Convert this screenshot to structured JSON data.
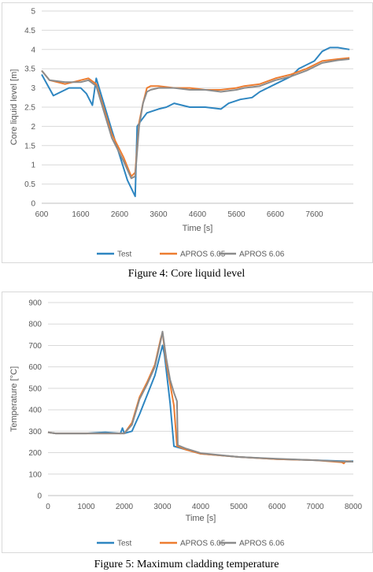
{
  "colors": {
    "test": "#2e86c1",
    "apros605": "#ed7d31",
    "apros606": "#8c8c8c",
    "grid": "#d9d9d9",
    "axis_text": "#595959"
  },
  "captions": {
    "fig4": "Figure 4: Core liquid level",
    "fig5": "Figure 5: Maximum cladding temperature"
  },
  "chart_data": [
    {
      "type": "line",
      "xlabel": "Time [s]",
      "ylabel": "Core liquid level [m]",
      "xlim": [
        600,
        8600
      ],
      "ylim": [
        0,
        5
      ],
      "xticks": [
        600,
        1600,
        2600,
        3600,
        4600,
        5600,
        6600,
        7600
      ],
      "yticks": [
        0,
        0.5,
        1,
        1.5,
        2,
        2.5,
        3,
        3.5,
        4,
        4.5,
        5
      ],
      "ytick_labels": [
        "0",
        "0.5",
        "1",
        "1.5",
        "2",
        "2.5",
        "3",
        "3.5",
        "4",
        "4.5",
        "5"
      ],
      "grid": "horizontal",
      "legend": "bottom",
      "series": [
        {
          "name": "Test",
          "color_key": "test",
          "x": [
            600,
            900,
            1300,
            1600,
            1750,
            1900,
            2000,
            2400,
            2800,
            3000,
            3050,
            3150,
            3300,
            3600,
            3800,
            4000,
            4400,
            4800,
            5200,
            5400,
            5700,
            6000,
            6200,
            6600,
            7000,
            7200,
            7600,
            7800,
            8000,
            8200,
            8500
          ],
          "y": [
            3.35,
            2.8,
            3.0,
            3.0,
            2.85,
            2.55,
            3.25,
            1.9,
            0.6,
            0.18,
            2.0,
            2.15,
            2.35,
            2.45,
            2.5,
            2.6,
            2.5,
            2.5,
            2.45,
            2.6,
            2.7,
            2.75,
            2.9,
            3.1,
            3.3,
            3.5,
            3.7,
            3.95,
            4.05,
            4.05,
            4.0
          ]
        },
        {
          "name": "APROS 6.05",
          "color_key": "apros605",
          "x": [
            600,
            800,
            1200,
            1600,
            1800,
            2000,
            2400,
            2700,
            2900,
            3000,
            3100,
            3200,
            3300,
            3400,
            3600,
            4000,
            4400,
            4800,
            5200,
            5600,
            5800,
            6200,
            6600,
            7000,
            7400,
            7800,
            8200,
            8500
          ],
          "y": [
            3.45,
            3.2,
            3.1,
            3.2,
            3.25,
            3.1,
            1.8,
            1.2,
            0.7,
            0.8,
            2.1,
            2.6,
            3.0,
            3.05,
            3.05,
            3.0,
            3.0,
            2.95,
            2.95,
            3.0,
            3.05,
            3.1,
            3.25,
            3.35,
            3.5,
            3.7,
            3.75,
            3.78
          ]
        },
        {
          "name": "APROS 6.06",
          "color_key": "apros606",
          "x": [
            600,
            800,
            1200,
            1600,
            1800,
            2000,
            2400,
            2700,
            2900,
            3000,
            3100,
            3200,
            3300,
            3400,
            3600,
            4000,
            4400,
            4800,
            5200,
            5600,
            5800,
            6200,
            6600,
            7000,
            7400,
            7800,
            8200,
            8500
          ],
          "y": [
            3.45,
            3.2,
            3.15,
            3.15,
            3.2,
            3.05,
            1.7,
            1.1,
            0.65,
            0.7,
            2.0,
            2.6,
            2.9,
            2.95,
            3.0,
            3.0,
            2.95,
            2.95,
            2.9,
            2.95,
            3.0,
            3.05,
            3.2,
            3.3,
            3.45,
            3.65,
            3.72,
            3.75
          ]
        }
      ]
    },
    {
      "type": "line",
      "xlabel": "Time [s]",
      "ylabel": "Temperature [°C]",
      "xlim": [
        0,
        8000
      ],
      "ylim": [
        0,
        900
      ],
      "xticks": [
        0,
        1000,
        2000,
        3000,
        4000,
        5000,
        6000,
        7000,
        8000
      ],
      "yticks": [
        0,
        100,
        200,
        300,
        400,
        500,
        600,
        700,
        800,
        900
      ],
      "ytick_labels": [
        "0",
        "100",
        "200",
        "300",
        "400",
        "500",
        "600",
        "700",
        "800",
        "900"
      ],
      "grid": "horizontal",
      "legend": "bottom",
      "series": [
        {
          "name": "Test",
          "color_key": "test",
          "x": [
            0,
            200,
            500,
            1000,
            1500,
            1900,
            1950,
            2000,
            2200,
            2400,
            2600,
            2800,
            3000,
            3050,
            3200,
            3300,
            3500,
            4000,
            5000,
            6000,
            7000,
            7800,
            8000
          ],
          "y": [
            295,
            290,
            290,
            290,
            295,
            290,
            315,
            290,
            300,
            380,
            470,
            560,
            700,
            660,
            430,
            230,
            220,
            195,
            180,
            170,
            165,
            160,
            160
          ]
        },
        {
          "name": "APROS 6.05",
          "color_key": "apros605",
          "x": [
            0,
            200,
            500,
            1000,
            1500,
            2000,
            2200,
            2400,
            2600,
            2800,
            2950,
            3000,
            3100,
            3200,
            3300,
            3380,
            3400,
            3600,
            4000,
            5000,
            6000,
            7000,
            7700,
            7750,
            7800,
            8000
          ],
          "y": [
            295,
            290,
            290,
            290,
            290,
            290,
            340,
            460,
            530,
            610,
            730,
            760,
            620,
            520,
            420,
            230,
            230,
            215,
            195,
            180,
            170,
            165,
            155,
            150,
            160,
            158
          ]
        },
        {
          "name": "APROS 6.06",
          "color_key": "apros606",
          "x": [
            0,
            200,
            500,
            1000,
            1500,
            2000,
            2200,
            2400,
            2600,
            2800,
            2950,
            3000,
            3100,
            3200,
            3300,
            3380,
            3400,
            3600,
            4000,
            5000,
            6000,
            7000,
            7800,
            8000
          ],
          "y": [
            295,
            290,
            290,
            290,
            290,
            290,
            330,
            450,
            520,
            600,
            720,
            765,
            640,
            540,
            480,
            440,
            235,
            220,
            198,
            180,
            172,
            165,
            158,
            158
          ]
        }
      ]
    }
  ]
}
